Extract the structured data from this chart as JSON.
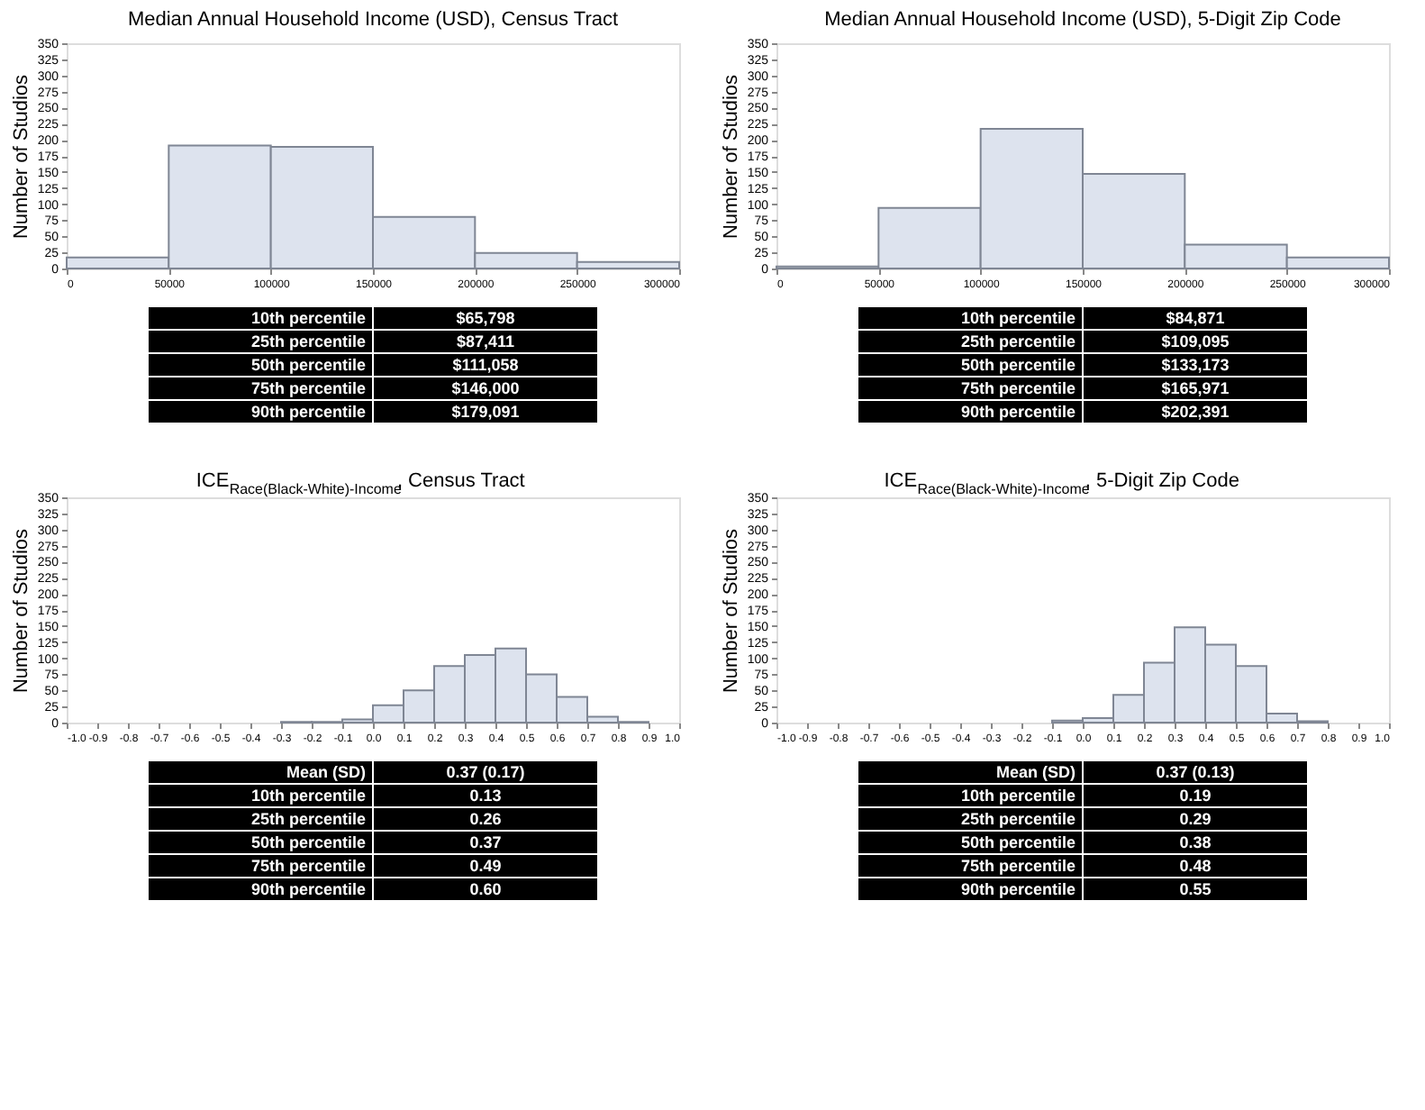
{
  "chart_data": [
    {
      "type": "histogram",
      "title": "Median Annual Household Income (USD), Census Tract",
      "ylabel": "Number of Studios",
      "bins": [
        0,
        50000,
        100000,
        150000,
        200000,
        250000,
        300000
      ],
      "values": [
        17,
        191,
        189,
        80,
        24,
        10
      ],
      "color": "#dde3ee",
      "xlim": [
        0,
        300000
      ],
      "xticks": [
        0,
        50000,
        100000,
        150000,
        200000,
        250000,
        300000
      ],
      "ylim": [
        0,
        350
      ],
      "yticks": [
        0,
        25,
        50,
        75,
        100,
        125,
        150,
        175,
        200,
        225,
        250,
        275,
        300,
        325,
        350
      ],
      "grid": false,
      "annotations": [
        "10th percentile",
        "$65,798",
        "25th percentile",
        "$87,411",
        "50th percentile",
        "$111,058",
        "75th percentile",
        "$146,000",
        "90th percentile",
        "$179,091"
      ]
    },
    {
      "type": "histogram",
      "title": "Median Annual Household Income (USD), 5-Digit Zip Code",
      "ylabel": "Number of Studios",
      "bins": [
        0,
        50000,
        100000,
        150000,
        200000,
        250000,
        300000
      ],
      "values": [
        3,
        94,
        217,
        147,
        37,
        17
      ],
      "color": "#dde3ee",
      "xlim": [
        0,
        300000
      ],
      "xticks": [
        0,
        50000,
        100000,
        150000,
        200000,
        250000,
        300000
      ],
      "ylim": [
        0,
        350
      ],
      "yticks": [
        0,
        25,
        50,
        75,
        100,
        125,
        150,
        175,
        200,
        225,
        250,
        275,
        300,
        325,
        350
      ],
      "grid": false,
      "annotations": [
        "10th percentile",
        "$84,871",
        "25th percentile",
        "$109,095",
        "50th percentile",
        "$133,173",
        "75th percentile",
        "$165,971",
        "90th percentile",
        "$202,391"
      ]
    },
    {
      "type": "histogram",
      "title": "ICE$_{Race(Black-White)-Income}$, Census Tract",
      "ylabel": "Number of Studios",
      "bins": [
        -1.0,
        -0.9,
        -0.8,
        -0.7,
        -0.6,
        -0.5,
        -0.4,
        -0.3,
        -0.2,
        -0.1,
        0.0,
        0.1,
        0.2,
        0.3,
        0.4,
        0.5,
        0.6,
        0.7,
        0.8,
        0.9,
        1.0
      ],
      "values": [
        0,
        0,
        0,
        0,
        0,
        0,
        0,
        1,
        1,
        5,
        27,
        50,
        88,
        105,
        115,
        75,
        40,
        9,
        1,
        0
      ],
      "color": "#dde3ee",
      "xlim": [
        -1.0,
        1.0
      ],
      "xticks": [
        {
          "value": -1.0,
          "label": "-1.0"
        },
        -0.9,
        -0.8,
        -0.7,
        -0.6,
        -0.5,
        -0.4,
        -0.3,
        -0.2,
        -0.1,
        {
          "value": 0.0,
          "label": "0.0"
        },
        0.1,
        0.2,
        0.3,
        0.4,
        0.5,
        0.6,
        0.7,
        0.8,
        0.9,
        {
          "value": 1.0,
          "label": "1.0"
        }
      ],
      "ylim": [
        0,
        350
      ],
      "yticks": [
        0,
        25,
        50,
        75,
        100,
        125,
        150,
        175,
        200,
        225,
        250,
        275,
        300,
        325,
        350
      ],
      "grid": false,
      "annotations": [
        "Mean (SD)",
        "0.37 (0.17)",
        "10th percentile",
        "0.13",
        "25th percentile",
        "0.26",
        "50th percentile",
        "0.37",
        "75th percentile",
        "0.49",
        "90th percentile",
        "0.60"
      ]
    },
    {
      "type": "histogram",
      "title": "ICE$_{Race(Black-White)-Income}$, 5-Digit Zip Code",
      "ylabel": "Number of Studios",
      "bins": [
        -1.0,
        -0.9,
        -0.8,
        -0.7,
        -0.6,
        -0.5,
        -0.4,
        -0.3,
        -0.2,
        -0.1,
        0.0,
        0.1,
        0.2,
        0.3,
        0.4,
        0.5,
        0.6,
        0.7,
        0.8,
        0.9,
        1.0
      ],
      "values": [
        0,
        0,
        0,
        0,
        0,
        0,
        0,
        0,
        0,
        3,
        7,
        43,
        93,
        148,
        121,
        88,
        14,
        2,
        0,
        0
      ],
      "color": "#dde3ee",
      "xlim": [
        -1.0,
        1.0
      ],
      "xticks": [
        {
          "value": -1.0,
          "label": "-1.0"
        },
        -0.9,
        -0.8,
        -0.7,
        -0.6,
        -0.5,
        -0.4,
        -0.3,
        -0.2,
        -0.1,
        {
          "value": 0.0,
          "label": "0.0"
        },
        0.1,
        0.2,
        0.3,
        0.4,
        0.5,
        0.6,
        0.7,
        0.8,
        0.9,
        {
          "value": 1.0,
          "label": "1.0"
        }
      ],
      "ylim": [
        0,
        350
      ],
      "yticks": [
        0,
        25,
        50,
        75,
        100,
        125,
        150,
        175,
        200,
        225,
        250,
        275,
        300,
        325,
        350
      ],
      "grid": false,
      "annotations": [
        "Mean (SD)",
        "0.37 (0.13)",
        "10th percentile",
        "0.19",
        "25th percentile",
        "0.29",
        "50th percentile",
        "0.38",
        "75th percentile",
        "0.48",
        "90th percentile",
        "0.55"
      ]
    }
  ]
}
